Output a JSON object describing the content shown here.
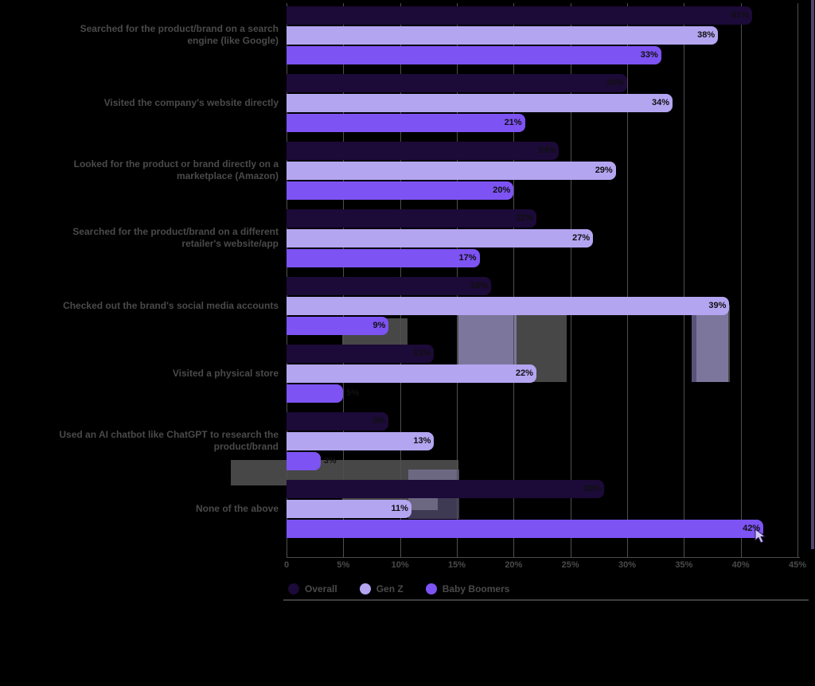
{
  "chart_data": {
    "type": "bar",
    "orientation": "horizontal",
    "title": "",
    "xlabel": "",
    "ylabel": "",
    "xlim": [
      0,
      45
    ],
    "grid": "vertical",
    "legend_position": "bottom",
    "value_suffix": "%",
    "tick_values": [
      0,
      5,
      10,
      15,
      20,
      25,
      30,
      35,
      40,
      45
    ],
    "tick_labels": [
      "0",
      "5%",
      "10%",
      "15%",
      "20%",
      "25%",
      "30%",
      "35%",
      "40%",
      "45%"
    ],
    "categories": [
      [
        "Searched for the product/brand on a search",
        "engine (like Google)"
      ],
      [
        "Visited the company's website directly"
      ],
      [
        "Looked for the product or brand directly on a",
        "marketplace (Amazon)"
      ],
      [
        "Searched for the product/brand on a different",
        "retailer's website/app"
      ],
      [
        "Checked out the brand's social media accounts"
      ],
      [
        "Visited a physical store"
      ],
      [
        "Used an AI chatbot like ChatGPT to research the",
        "product/brand"
      ],
      [
        "None of the above"
      ]
    ],
    "series": [
      {
        "name": "Overall",
        "color": "#1c0a38",
        "values": [
          41,
          30,
          24,
          22,
          18,
          13,
          9,
          28
        ]
      },
      {
        "name": "Gen Z",
        "color": "#b4a5f1",
        "values": [
          38,
          34,
          29,
          27,
          39,
          22,
          13,
          11
        ]
      },
      {
        "name": "Baby Boomers",
        "color": "#7d53f3",
        "values": [
          33,
          21,
          20,
          17,
          9,
          5,
          3,
          42
        ]
      }
    ]
  },
  "style": {
    "background": "#000000",
    "text_color": "#4a4a4a",
    "gridline_color": "#4f4f4f",
    "value_label_color": "#101010"
  }
}
